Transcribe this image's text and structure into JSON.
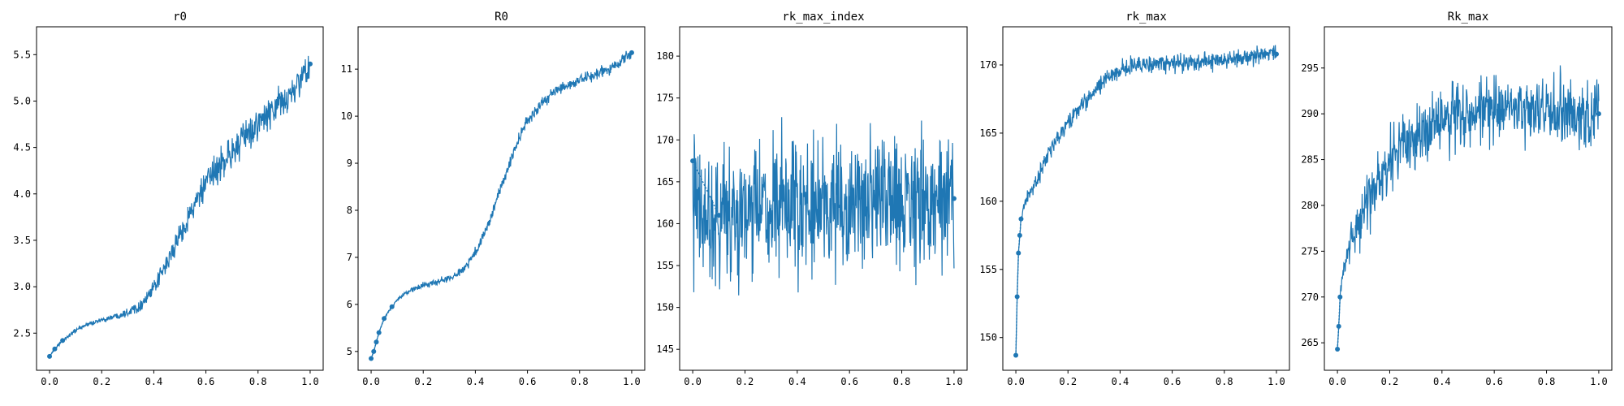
{
  "figure": {
    "line_color": "#1f77b4",
    "axes_color": "#000000"
  },
  "chart_data": [
    {
      "type": "line",
      "title": "r0",
      "xlim": [
        -0.05,
        1.05
      ],
      "ylim": [
        2.1,
        5.8
      ],
      "xticks": [
        0.0,
        0.2,
        0.4,
        0.6,
        0.8,
        1.0
      ],
      "xtick_labels": [
        "0.0",
        "0.2",
        "0.4",
        "0.6",
        "0.8",
        "1.0"
      ],
      "yticks": [
        2.5,
        3.0,
        3.5,
        4.0,
        4.5,
        5.0,
        5.5
      ],
      "ytick_labels": [
        "2.5",
        "3.0",
        "3.5",
        "4.0",
        "4.5",
        "5.0",
        "5.5"
      ],
      "series": [
        {
          "x": [
            0.0,
            0.02,
            0.05,
            0.1,
            0.15,
            0.2,
            0.25,
            0.3,
            0.35,
            0.4,
            0.45,
            0.5,
            0.55,
            0.6,
            0.65,
            0.7,
            0.75,
            0.8,
            0.85,
            0.9,
            0.95,
            1.0
          ],
          "values": [
            2.25,
            2.33,
            2.42,
            2.53,
            2.6,
            2.64,
            2.68,
            2.73,
            2.8,
            2.98,
            3.25,
            3.55,
            3.85,
            4.1,
            4.3,
            4.45,
            4.6,
            4.75,
            4.88,
            5.0,
            5.15,
            5.4
          ],
          "noise": [
            0.0,
            0.01,
            0.02,
            0.02,
            0.02,
            0.02,
            0.03,
            0.04,
            0.05,
            0.06,
            0.08,
            0.1,
            0.12,
            0.13,
            0.14,
            0.15,
            0.15,
            0.15,
            0.15,
            0.15,
            0.16,
            0.18
          ],
          "markers": 3
        }
      ]
    },
    {
      "type": "line",
      "title": "R0",
      "xlim": [
        -0.05,
        1.05
      ],
      "ylim": [
        4.6,
        11.9
      ],
      "xticks": [
        0.0,
        0.2,
        0.4,
        0.6,
        0.8,
        1.0
      ],
      "xtick_labels": [
        "0.0",
        "0.2",
        "0.4",
        "0.6",
        "0.8",
        "1.0"
      ],
      "yticks": [
        5,
        6,
        7,
        8,
        9,
        10,
        11
      ],
      "ytick_labels": [
        "5",
        "6",
        "7",
        "8",
        "9",
        "10",
        "11"
      ],
      "series": [
        {
          "x": [
            0.0,
            0.01,
            0.02,
            0.03,
            0.05,
            0.08,
            0.1,
            0.15,
            0.2,
            0.25,
            0.3,
            0.35,
            0.4,
            0.45,
            0.5,
            0.55,
            0.6,
            0.65,
            0.7,
            0.75,
            0.8,
            0.85,
            0.9,
            0.95,
            1.0
          ],
          "values": [
            4.85,
            5.0,
            5.2,
            5.4,
            5.7,
            5.95,
            6.1,
            6.3,
            6.4,
            6.47,
            6.55,
            6.72,
            7.1,
            7.7,
            8.5,
            9.3,
            9.9,
            10.25,
            10.5,
            10.65,
            10.75,
            10.85,
            10.98,
            11.12,
            11.35
          ],
          "noise": [
            0.0,
            0.0,
            0.0,
            0.01,
            0.02,
            0.03,
            0.03,
            0.04,
            0.05,
            0.06,
            0.07,
            0.08,
            0.09,
            0.1,
            0.11,
            0.11,
            0.11,
            0.11,
            0.1,
            0.1,
            0.1,
            0.1,
            0.1,
            0.1,
            0.1
          ],
          "markers": 6
        }
      ]
    },
    {
      "type": "line",
      "title": "rk_max_index",
      "xlim": [
        -0.05,
        1.05
      ],
      "ylim": [
        142.5,
        183.5
      ],
      "xticks": [
        0.0,
        0.2,
        0.4,
        0.6,
        0.8,
        1.0
      ],
      "xtick_labels": [
        "0.0",
        "0.2",
        "0.4",
        "0.6",
        "0.8",
        "1.0"
      ],
      "yticks": [
        145,
        150,
        155,
        160,
        165,
        170,
        175,
        180
      ],
      "ytick_labels": [
        "145",
        "150",
        "155",
        "160",
        "165",
        "170",
        "175",
        "180"
      ],
      "series": [
        {
          "x": [
            0.0,
            0.1,
            0.2,
            0.3,
            0.4,
            0.5,
            0.6,
            0.7,
            0.8,
            0.9,
            1.0
          ],
          "values": [
            161.5,
            161.0,
            161.2,
            161.5,
            161.5,
            162.0,
            162.0,
            162.5,
            162.5,
            162.5,
            163.0
          ],
          "noise": [
            6.5,
            6.5,
            6.5,
            6.5,
            6.5,
            6.5,
            6.5,
            6.5,
            6.5,
            6.5,
            6.5
          ],
          "markers": 2,
          "first_point": 167.5
        }
      ]
    },
    {
      "type": "line",
      "title": "rk_max",
      "xlim": [
        -0.05,
        1.05
      ],
      "ylim": [
        147.6,
        172.8
      ],
      "xticks": [
        0.0,
        0.2,
        0.4,
        0.6,
        0.8,
        1.0
      ],
      "xtick_labels": [
        "0.0",
        "0.2",
        "0.4",
        "0.6",
        "0.8",
        "1.0"
      ],
      "yticks": [
        150,
        155,
        160,
        165,
        170
      ],
      "ytick_labels": [
        "150",
        "155",
        "160",
        "165",
        "170"
      ],
      "series": [
        {
          "x": [
            0.0,
            0.005,
            0.01,
            0.015,
            0.02,
            0.03,
            0.05,
            0.08,
            0.1,
            0.15,
            0.2,
            0.25,
            0.3,
            0.35,
            0.4,
            0.45,
            0.5,
            0.6,
            0.7,
            0.8,
            0.9,
            1.0
          ],
          "values": [
            148.7,
            153.0,
            156.2,
            157.5,
            158.7,
            159.5,
            160.5,
            161.5,
            162.5,
            164.2,
            165.7,
            167.0,
            168.0,
            169.0,
            169.7,
            170.0,
            170.0,
            170.1,
            170.2,
            170.4,
            170.6,
            170.8
          ],
          "noise": [
            0.0,
            0.0,
            0.0,
            0.1,
            0.2,
            0.3,
            0.4,
            0.5,
            0.55,
            0.55,
            0.55,
            0.55,
            0.55,
            0.55,
            0.55,
            0.55,
            0.55,
            0.55,
            0.55,
            0.55,
            0.55,
            0.55
          ],
          "markers": 5
        }
      ]
    },
    {
      "type": "line",
      "title": "Rk_max",
      "xlim": [
        -0.05,
        1.05
      ],
      "ylim": [
        262.0,
        299.5
      ],
      "xticks": [
        0.0,
        0.2,
        0.4,
        0.6,
        0.8,
        1.0
      ],
      "xtick_labels": [
        "0.0",
        "0.2",
        "0.4",
        "0.6",
        "0.8",
        "1.0"
      ],
      "yticks": [
        265,
        270,
        275,
        280,
        285,
        290,
        295
      ],
      "ytick_labels": [
        "265",
        "270",
        "275",
        "280",
        "285",
        "290",
        "295"
      ],
      "series": [
        {
          "x": [
            0.0,
            0.005,
            0.01,
            0.02,
            0.03,
            0.05,
            0.08,
            0.1,
            0.15,
            0.2,
            0.25,
            0.3,
            0.35,
            0.4,
            0.5,
            0.6,
            0.7,
            0.8,
            0.9,
            1.0
          ],
          "values": [
            264.3,
            266.8,
            270.0,
            272.5,
            274.0,
            276.0,
            278.0,
            279.5,
            282.0,
            284.5,
            286.5,
            287.5,
            288.5,
            289.5,
            290.0,
            290.3,
            290.3,
            290.3,
            290.3,
            290.0
          ],
          "noise": [
            0.0,
            0.0,
            0.5,
            1.0,
            1.5,
            2.0,
            2.5,
            2.8,
            3.0,
            3.0,
            3.0,
            3.0,
            3.0,
            3.0,
            3.0,
            3.0,
            3.0,
            3.0,
            3.0,
            3.0
          ],
          "markers": 3
        }
      ]
    }
  ]
}
